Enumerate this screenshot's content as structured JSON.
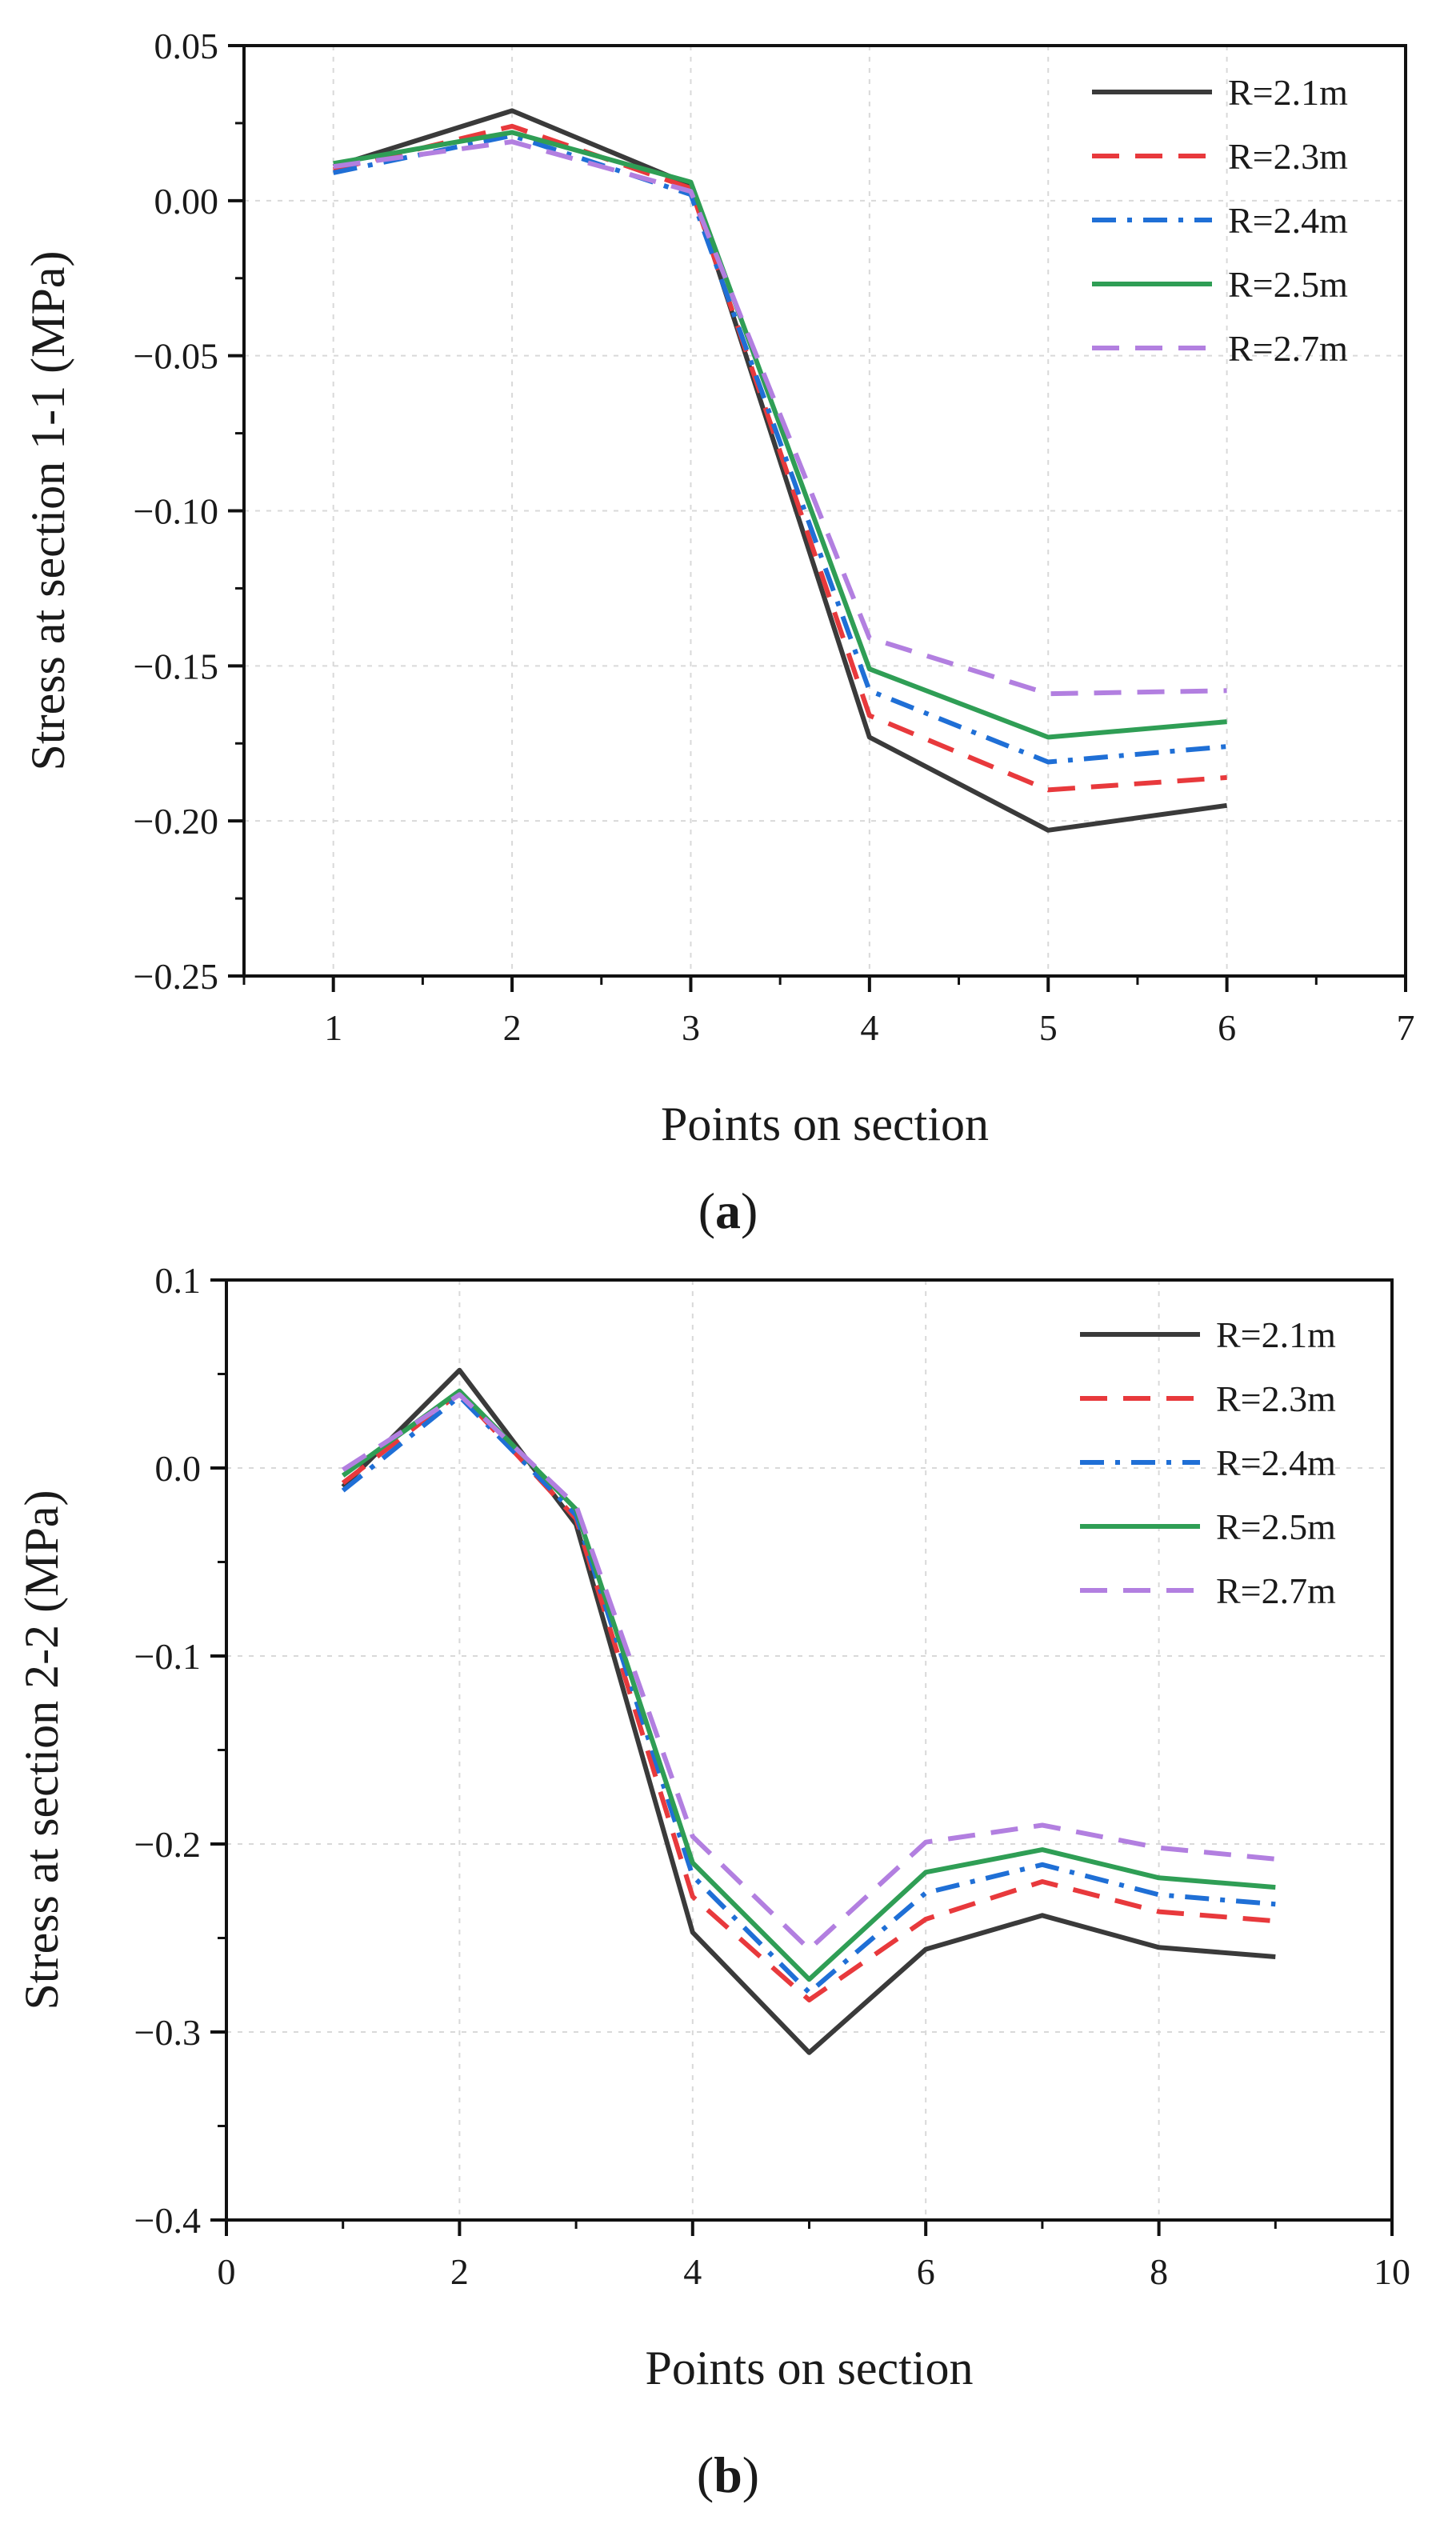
{
  "panels": [
    {
      "label_open": "(",
      "label_letter": "a",
      "label_close": ")"
    },
    {
      "label_open": "(",
      "label_letter": "b",
      "label_close": ")"
    }
  ],
  "chart_data": [
    {
      "type": "line",
      "title": "",
      "xlabel": "Points on section",
      "ylabel": "Stress at section 1-1 (MPa)",
      "xlim": [
        0.5,
        7
      ],
      "ylim": [
        -0.25,
        0.05
      ],
      "xticks": [
        1,
        2,
        3,
        4,
        5,
        6,
        7
      ],
      "xtick_labels": [
        "1",
        "2",
        "3",
        "4",
        "5",
        "6",
        "7"
      ],
      "yticks": [
        0.05,
        0.0,
        -0.05,
        -0.1,
        -0.15,
        -0.2,
        -0.25
      ],
      "ytick_labels": [
        "0.05",
        "0.00",
        "−0.05",
        "−0.10",
        "−0.15",
        "−0.20",
        "−0.25"
      ],
      "grid": true,
      "legend_position": "top-right",
      "x": [
        1,
        2,
        3,
        4,
        5,
        6
      ],
      "series": [
        {
          "name": "R=2.1m",
          "color": "#3a3a3a",
          "dash": "solid",
          "values": [
            0.011,
            0.029,
            0.005,
            -0.173,
            -0.203,
            -0.195
          ]
        },
        {
          "name": "R=2.3m",
          "color": "#e8393c",
          "dash": "dashed",
          "values": [
            0.01,
            0.024,
            0.004,
            -0.166,
            -0.19,
            -0.186
          ]
        },
        {
          "name": "R=2.4m",
          "color": "#1f6fd6",
          "dash": "dashdot",
          "values": [
            0.009,
            0.021,
            0.002,
            -0.158,
            -0.181,
            -0.176
          ]
        },
        {
          "name": "R=2.5m",
          "color": "#2f9e55",
          "dash": "solid",
          "values": [
            0.012,
            0.022,
            0.006,
            -0.151,
            -0.173,
            -0.168
          ]
        },
        {
          "name": "R=2.7m",
          "color": "#b27fe0",
          "dash": "dashed",
          "values": [
            0.011,
            0.019,
            0.003,
            -0.141,
            -0.159,
            -0.158
          ]
        }
      ]
    },
    {
      "type": "line",
      "title": "",
      "xlabel": "Points on section",
      "ylabel": "Stress  at section 2-2 (MPa)",
      "xlim": [
        0,
        10
      ],
      "ylim": [
        -0.4,
        0.1
      ],
      "xticks": [
        0,
        2,
        4,
        6,
        8,
        10
      ],
      "xtick_labels": [
        "0",
        "2",
        "4",
        "6",
        "8",
        "10"
      ],
      "minor_xticks": [
        1,
        3,
        5,
        7,
        9
      ],
      "yticks": [
        0.1,
        0.0,
        -0.1,
        -0.2,
        -0.3,
        -0.4
      ],
      "ytick_labels": [
        "0.1",
        "0.0",
        "−0.1",
        "−0.2",
        "−0.3",
        "−0.4"
      ],
      "grid": true,
      "legend_position": "top-right",
      "x": [
        1,
        2,
        3,
        4,
        5,
        6,
        7,
        8,
        9
      ],
      "series": [
        {
          "name": "R=2.1m",
          "color": "#3a3a3a",
          "dash": "solid",
          "values": [
            -0.01,
            0.052,
            -0.03,
            -0.247,
            -0.311,
            -0.256,
            -0.238,
            -0.255,
            -0.26
          ]
        },
        {
          "name": "R=2.3m",
          "color": "#e8393c",
          "dash": "dashed",
          "values": [
            -0.008,
            0.04,
            -0.027,
            -0.228,
            -0.283,
            -0.24,
            -0.22,
            -0.236,
            -0.241
          ]
        },
        {
          "name": "R=2.4m",
          "color": "#1f6fd6",
          "dash": "dashdot",
          "values": [
            -0.012,
            0.038,
            -0.025,
            -0.217,
            -0.279,
            -0.226,
            -0.211,
            -0.227,
            -0.232
          ]
        },
        {
          "name": "R=2.5m",
          "color": "#2f9e55",
          "dash": "solid",
          "values": [
            -0.004,
            0.041,
            -0.022,
            -0.21,
            -0.272,
            -0.215,
            -0.203,
            -0.218,
            -0.223
          ]
        },
        {
          "name": "R=2.7m",
          "color": "#b27fe0",
          "dash": "dashed",
          "values": [
            -0.001,
            0.039,
            -0.02,
            -0.196,
            -0.256,
            -0.199,
            -0.19,
            -0.202,
            -0.208
          ]
        }
      ]
    }
  ]
}
